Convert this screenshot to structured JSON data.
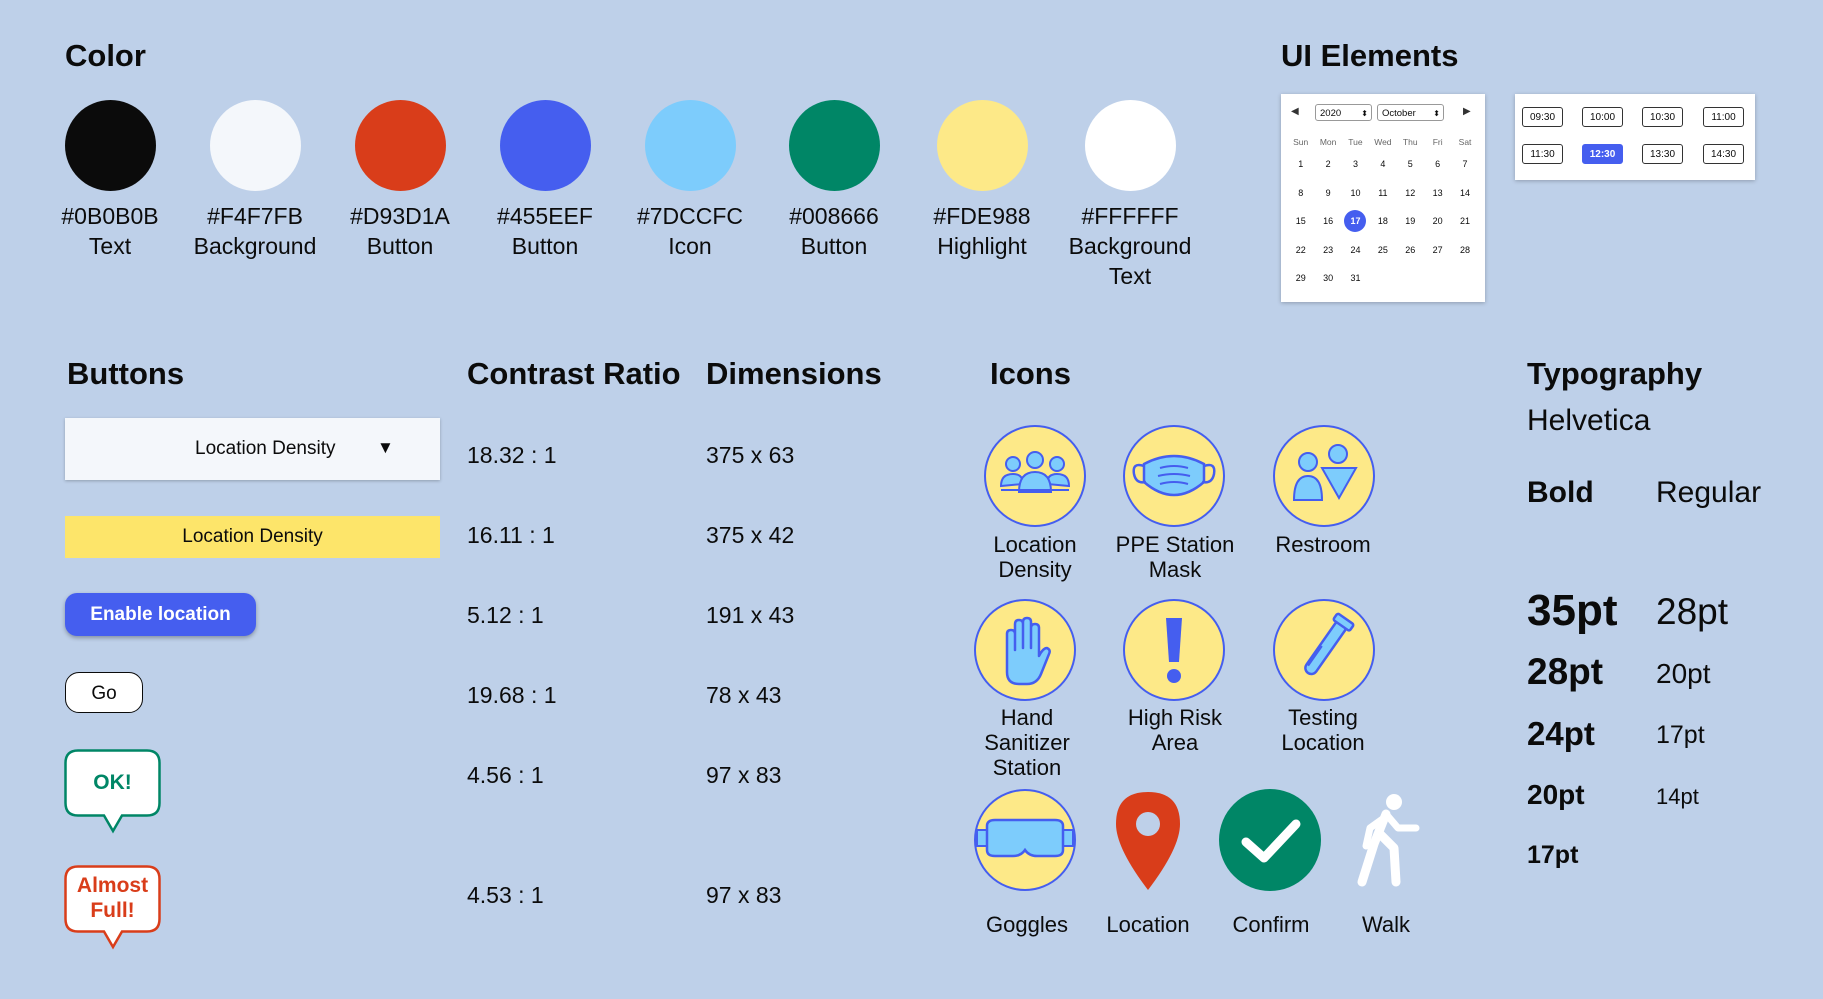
{
  "colors_section": {
    "title": "Color",
    "swatches": [
      {
        "hex": "#0B0B0B",
        "label_hex": "#0B0B0B",
        "role": "Text"
      },
      {
        "hex": "#F4F7FB",
        "label_hex": "#F4F7FB",
        "role": "Background"
      },
      {
        "hex": "#D93D1A",
        "label_hex": "#D93D1A",
        "role": "Button"
      },
      {
        "hex": "#455EEF",
        "label_hex": "#455EEF",
        "role": "Button"
      },
      {
        "hex": "#7DCCFC",
        "label_hex": "#7DCCFC",
        "role": "Icon"
      },
      {
        "hex": "#008666",
        "label_hex": "#008666",
        "role": "Button"
      },
      {
        "hex": "#FDE988",
        "label_hex": "#FDE988",
        "role": "Highlight"
      },
      {
        "hex": "#FFFFFF",
        "label_hex": "#FFFFFF",
        "role": "Background",
        "role2": "Text"
      }
    ]
  },
  "ui_elements": {
    "title": "UI Elements",
    "calendar": {
      "year": "2020",
      "month": "October",
      "weekdays": [
        "Sun",
        "Mon",
        "Tue",
        "Wed",
        "Thu",
        "Fri",
        "Sat"
      ],
      "weeks": [
        [
          "1",
          "2",
          "3",
          "4",
          "5",
          "6",
          "7"
        ],
        [
          "8",
          "9",
          "10",
          "11",
          "12",
          "13",
          "14"
        ],
        [
          "15",
          "16",
          "17",
          "18",
          "19",
          "20",
          "21"
        ],
        [
          "22",
          "23",
          "24",
          "25",
          "26",
          "27",
          "28"
        ],
        [
          "29",
          "30",
          "31",
          "",
          "",
          "",
          ""
        ]
      ],
      "selected_day": "17"
    },
    "time_slots": {
      "row1": [
        "09:30",
        "10:00",
        "10:30",
        "11:00"
      ],
      "row2": [
        "11:30",
        "12:30",
        "13:30",
        "14:30"
      ],
      "selected": "12:30"
    }
  },
  "buttons_section": {
    "title": "Buttons",
    "dropdown_label": "Location Density",
    "dropdown_caret": "▼",
    "highlight_label": "Location Density",
    "enable_label": "Enable location",
    "go_label": "Go",
    "ok_label": "OK!",
    "almost_full_line1": "Almost",
    "almost_full_line2": "Full!"
  },
  "contrast_section": {
    "title": "Contrast Ratio",
    "values": [
      "18.32 : 1",
      "16.11 : 1",
      "5.12 : 1",
      "19.68 : 1",
      "4.56 : 1",
      "4.53 : 1"
    ]
  },
  "dimensions_section": {
    "title": "Dimensions",
    "values": [
      "375 x 63",
      "375 x 42",
      "191 x 43",
      "78 x 43",
      "97 x 83",
      "97 x 83"
    ]
  },
  "icons_section": {
    "title": "Icons",
    "items": [
      {
        "icon": "people-group-icon",
        "line1": "Location",
        "line2": "Density"
      },
      {
        "icon": "face-mask-icon",
        "line1": "PPE Station",
        "line2": "Mask"
      },
      {
        "icon": "restroom-icon",
        "line1": "Restroom"
      },
      {
        "icon": "hand-icon",
        "line1": "Hand",
        "line2": "Sanitizer",
        "line3": "Station"
      },
      {
        "icon": "exclamation-icon",
        "line1": "High Risk",
        "line2": "Area"
      },
      {
        "icon": "test-tube-icon",
        "line1": "Testing",
        "line2": "Location"
      },
      {
        "icon": "goggles-icon",
        "line1": "Goggles"
      },
      {
        "icon": "map-pin-icon",
        "line1": "Location"
      },
      {
        "icon": "checkmark-icon",
        "line1": "Confirm"
      },
      {
        "icon": "walking-person-icon",
        "line1": "Walk"
      }
    ]
  },
  "typography_section": {
    "title": "Typography",
    "font_name": "Helvetica",
    "bold_header": "Bold",
    "regular_header": "Regular",
    "bold_sizes": [
      "35pt",
      "28pt",
      "24pt",
      "20pt",
      "17pt"
    ],
    "regular_sizes": [
      "28pt",
      "20pt",
      "17pt",
      "14pt"
    ]
  }
}
